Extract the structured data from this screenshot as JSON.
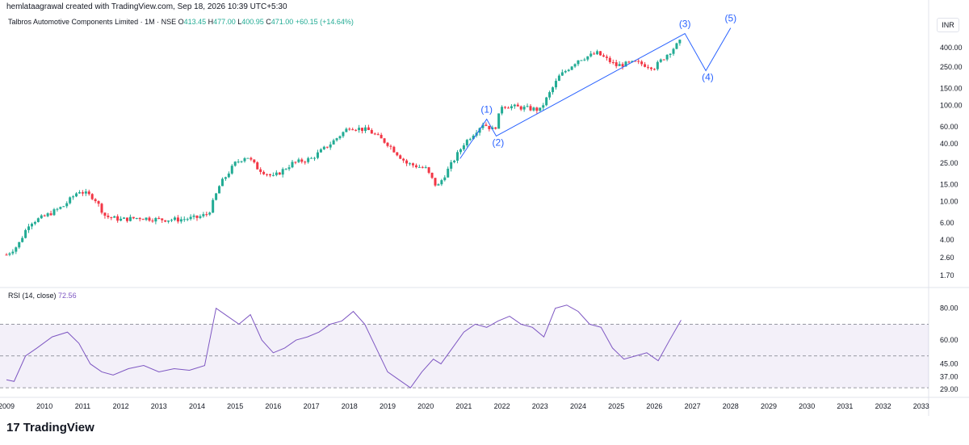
{
  "header": {
    "attribution": "hemlataagrawal created with TradingView.com, Sep 18, 2026 10:39 UTC+5:30"
  },
  "symbol": {
    "name": "Talbros Automotive Components Limited · 1M · NSE",
    "o_label": "O",
    "o_value": "413.45",
    "h_label": "H",
    "h_value": "477.00",
    "l_label": "L",
    "l_value": "400.95",
    "c_label": "C",
    "c_value": "471.00",
    "change": "+60.15 (+14.64%)"
  },
  "currency_button": "INR",
  "rsi": {
    "label": "RSI (14, close)",
    "value": "72.56"
  },
  "brand": {
    "logo": "17",
    "name": "TradingView"
  },
  "colors": {
    "up": "#22ab94",
    "down": "#f23645",
    "rsi": "#7e57c2",
    "wave": "#2962ff"
  },
  "chart_data": [
    {
      "type": "candlestick",
      "price_scale": "log",
      "y_ticks": [
        "400.00",
        "250.00",
        "150.00",
        "100.00",
        "60.00",
        "40.00",
        "25.00",
        "15.00",
        "10.00",
        "6.00",
        "4.00",
        "2.60",
        "1.70"
      ],
      "x_ticks": [
        "2009",
        "2010",
        "2011",
        "2012",
        "2013",
        "2014",
        "2015",
        "2016",
        "2017",
        "2018",
        "2019",
        "2020",
        "2021",
        "2022",
        "2023",
        "2024",
        "2025",
        "2026",
        "2027",
        "2028",
        "2029",
        "2030",
        "2031",
        "2032",
        "2033"
      ],
      "approx_path": [
        [
          2009.0,
          2.8
        ],
        [
          2009.3,
          3.5
        ],
        [
          2009.6,
          6.0
        ],
        [
          2010.0,
          7.0
        ],
        [
          2010.5,
          9.0
        ],
        [
          2010.9,
          13.0
        ],
        [
          2011.3,
          11.0
        ],
        [
          2011.6,
          7.0
        ],
        [
          2012.0,
          6.5
        ],
        [
          2012.5,
          6.8
        ],
        [
          2013.0,
          6.5
        ],
        [
          2013.5,
          6.5
        ],
        [
          2014.0,
          6.8
        ],
        [
          2014.3,
          7.5
        ],
        [
          2014.6,
          15.0
        ],
        [
          2015.0,
          25.0
        ],
        [
          2015.3,
          30.0
        ],
        [
          2015.6,
          22.0
        ],
        [
          2016.0,
          18.0
        ],
        [
          2016.5,
          25.0
        ],
        [
          2017.0,
          28.0
        ],
        [
          2017.5,
          40.0
        ],
        [
          2018.0,
          60.0
        ],
        [
          2018.5,
          55.0
        ],
        [
          2019.0,
          40.0
        ],
        [
          2019.5,
          25.0
        ],
        [
          2020.0,
          22.0
        ],
        [
          2020.3,
          14.0
        ],
        [
          2020.6,
          22.0
        ],
        [
          2021.0,
          40.0
        ],
        [
          2021.5,
          65.0
        ],
        [
          2021.8,
          55.0
        ],
        [
          2022.0,
          100.0
        ],
        [
          2022.5,
          95.0
        ],
        [
          2023.0,
          90.0
        ],
        [
          2023.5,
          200.0
        ],
        [
          2024.0,
          300.0
        ],
        [
          2024.5,
          350.0
        ],
        [
          2025.0,
          260.0
        ],
        [
          2025.5,
          280.0
        ],
        [
          2026.0,
          250.0
        ],
        [
          2026.3,
          330.0
        ],
        [
          2026.7,
          471.0
        ]
      ],
      "annotations": [
        {
          "label": "(1)",
          "year": 2021.6,
          "price": 72
        },
        {
          "label": "(2)",
          "year": 2021.9,
          "price": 50
        },
        {
          "label": "(3)",
          "year": 2026.8,
          "price": 560
        },
        {
          "label": "(4)",
          "year": 2027.4,
          "price": 240
        },
        {
          "label": "(5)",
          "year": 2028.0,
          "price": 640
        }
      ]
    },
    {
      "type": "line",
      "name": "RSI (14, close)",
      "y_ticks": [
        "80.00",
        "60.00",
        "45.00",
        "37.00",
        "29.00"
      ],
      "levels": [
        70,
        50,
        30
      ],
      "x": [
        2009.0,
        2009.2,
        2009.5,
        2009.8,
        2010.2,
        2010.6,
        2010.9,
        2011.2,
        2011.5,
        2011.8,
        2012.2,
        2012.6,
        2013.0,
        2013.4,
        2013.8,
        2014.2,
        2014.5,
        2014.8,
        2015.1,
        2015.4,
        2015.7,
        2016.0,
        2016.3,
        2016.6,
        2016.9,
        2017.2,
        2017.5,
        2017.8,
        2018.1,
        2018.4,
        2018.7,
        2019.0,
        2019.3,
        2019.6,
        2019.9,
        2020.2,
        2020.4,
        2020.7,
        2021.0,
        2021.3,
        2021.6,
        2021.9,
        2022.2,
        2022.5,
        2022.8,
        2023.1,
        2023.4,
        2023.7,
        2024.0,
        2024.3,
        2024.6,
        2024.9,
        2025.2,
        2025.5,
        2025.8,
        2026.1,
        2026.4,
        2026.7
      ],
      "values": [
        35,
        34,
        50,
        55,
        62,
        65,
        58,
        45,
        40,
        38,
        42,
        44,
        40,
        42,
        41,
        44,
        80,
        75,
        70,
        76,
        60,
        52,
        55,
        60,
        62,
        65,
        70,
        72,
        78,
        70,
        55,
        40,
        35,
        30,
        40,
        48,
        45,
        55,
        65,
        70,
        68,
        72,
        75,
        70,
        68,
        62,
        80,
        82,
        78,
        70,
        68,
        55,
        48,
        50,
        52,
        47,
        60,
        72.56
      ]
    }
  ]
}
